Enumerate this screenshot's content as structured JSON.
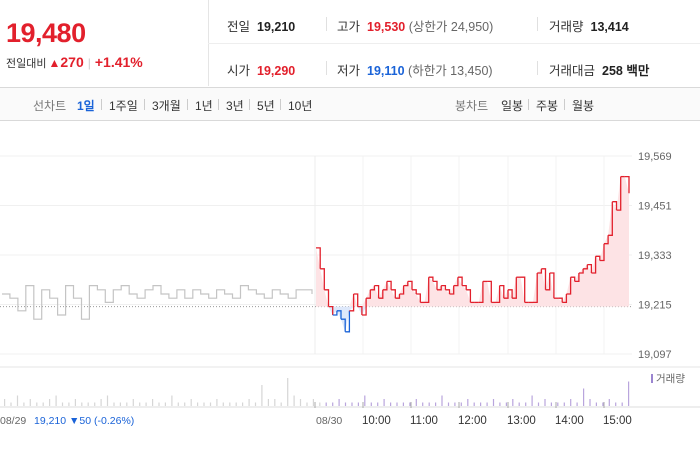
{
  "summary": {
    "price": "19,480",
    "change_label": "전일대비",
    "change_value": "270",
    "change_pct": "+1.41%"
  },
  "stats": {
    "prev_close": {
      "label": "전일",
      "value": "19,210"
    },
    "open": {
      "label": "시가",
      "value": "19,290"
    },
    "high": {
      "label": "고가",
      "value": "19,530",
      "sub": "(상한가 24,950)"
    },
    "low": {
      "label": "저가",
      "value": "19,110",
      "sub": "(하한가 13,450)"
    },
    "volume": {
      "label": "거래량",
      "value": "13,414"
    },
    "amount": {
      "label": "거래대금",
      "value": "258 백만"
    }
  },
  "tabs": {
    "line_label": "선차트",
    "line_items": [
      "1일",
      "1주일",
      "3개월",
      "1년",
      "3년",
      "5년",
      "10년"
    ],
    "active": "1일",
    "candle_label": "봉차트",
    "candle_items": [
      "일봉",
      "주봉",
      "월봉"
    ]
  },
  "colors": {
    "up": "#e2202c",
    "down": "#1a63d8",
    "accent": "#1a63d8"
  },
  "chart_data": {
    "type": "line",
    "y_ticks": [
      "19,569",
      "19,451",
      "19,333",
      "19,215",
      "19,097"
    ],
    "ylim": [
      19097,
      19569
    ],
    "prev_close": 19210,
    "x_ticks": [
      "10:00",
      "11:00",
      "12:00",
      "13:00",
      "14:00",
      "15:00"
    ],
    "prev_day_label": "08/29",
    "prev_day_summary": {
      "value": "19,210",
      "arrow": "▼",
      "change": "50",
      "pct": "(-0.26%)"
    },
    "today_label": "08/30",
    "volume_legend": "거래량",
    "prev_day_series": {
      "name": "08/29",
      "values": [
        19240,
        19230,
        19200,
        19260,
        19180,
        19250,
        19230,
        19190,
        19260,
        19230,
        19180,
        19260,
        19250,
        19220,
        19250,
        19260,
        19240,
        19230,
        19250,
        19260,
        19240,
        19230,
        19250,
        19230,
        19250,
        19240,
        19230,
        19250,
        19240,
        19230,
        19260,
        19250,
        19240,
        19230,
        19250,
        19240,
        19230,
        19250,
        19250,
        19240
      ]
    },
    "today_series": {
      "name": "08/30",
      "values": [
        19350,
        19300,
        19250,
        19210,
        19190,
        19200,
        19180,
        19150,
        19200,
        19240,
        19210,
        19190,
        19230,
        19250,
        19260,
        19230,
        19250,
        19270,
        19250,
        19230,
        19240,
        19260,
        19270,
        19250,
        19240,
        19220,
        19220,
        19280,
        19270,
        19250,
        19260,
        19250,
        19240,
        19260,
        19280,
        19260,
        19250,
        19220,
        19220,
        19220,
        19270,
        19270,
        19220,
        19220,
        19260,
        19230,
        19250,
        19230,
        19280,
        19280,
        19220,
        19220,
        19220,
        19290,
        19300,
        19250,
        19290,
        19230,
        19230,
        19220,
        19240,
        19280,
        19270,
        19290,
        19300,
        19310,
        19290,
        19330,
        19320,
        19360,
        19380,
        19460,
        19440,
        19520,
        19520,
        19480
      ]
    },
    "volume": [
      2,
      1,
      3,
      1,
      2,
      1,
      1,
      2,
      3,
      1,
      1,
      2,
      1,
      1,
      1,
      2,
      3,
      1,
      1,
      1,
      2,
      1,
      1,
      2,
      1,
      1,
      3,
      1,
      1,
      2,
      1,
      1,
      1,
      2,
      1,
      1,
      1,
      1,
      2,
      1,
      6,
      2,
      2,
      1,
      8,
      3,
      2,
      1,
      2,
      1,
      1,
      1,
      2,
      1,
      1,
      1,
      3,
      1,
      1,
      2,
      1,
      1,
      1,
      1,
      2,
      1,
      1,
      1,
      3,
      1,
      1,
      1,
      2,
      1,
      1,
      1,
      2,
      1,
      1,
      2,
      1,
      1,
      3,
      1,
      2,
      1,
      1,
      1,
      2,
      1,
      5,
      2,
      1,
      1,
      2,
      1,
      1,
      7
    ]
  }
}
